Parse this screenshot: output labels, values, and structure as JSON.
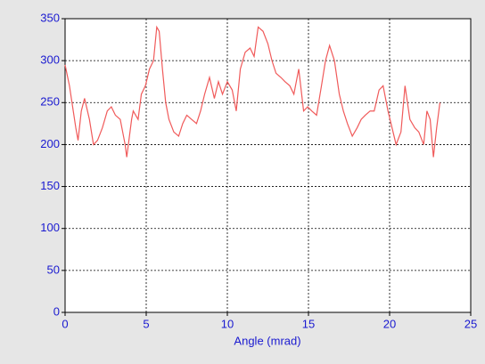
{
  "chart_data": {
    "type": "line",
    "xlabel": "Angle (mrad)",
    "x": [
      0,
      0.27,
      0.66,
      0.8,
      1.0,
      1.2,
      1.5,
      1.75,
      2.0,
      2.3,
      2.6,
      2.85,
      3.1,
      3.4,
      3.7,
      3.8,
      4.1,
      4.2,
      4.5,
      4.7,
      4.95,
      5.2,
      5.45,
      5.65,
      5.8,
      6.0,
      6.2,
      6.4,
      6.7,
      7.0,
      7.25,
      7.5,
      7.8,
      8.1,
      8.35,
      8.6,
      8.9,
      9.2,
      9.45,
      9.7,
      10.0,
      10.3,
      10.55,
      10.8,
      11.1,
      11.4,
      11.65,
      11.9,
      12.2,
      12.5,
      12.75,
      13.0,
      13.3,
      13.55,
      13.85,
      14.1,
      14.4,
      14.7,
      14.95,
      15.2,
      15.5,
      15.8,
      16.05,
      16.3,
      16.6,
      16.9,
      17.15,
      17.4,
      17.7,
      18.0,
      18.25,
      18.5,
      18.8,
      19.05,
      19.35,
      19.6,
      19.9,
      20.15,
      20.4,
      20.7,
      20.95,
      21.25,
      21.55,
      21.8,
      22.1,
      22.3,
      22.5,
      22.7,
      22.9,
      23.1
    ],
    "series": [
      {
        "color": "#f05a5a",
        "values": [
          295,
          270,
          220,
          205,
          240,
          255,
          230,
          200,
          205,
          220,
          240,
          245,
          235,
          230,
          200,
          185,
          230,
          240,
          230,
          260,
          270,
          290,
          300,
          340,
          335,
          290,
          250,
          230,
          215,
          210,
          225,
          235,
          230,
          225,
          240,
          260,
          280,
          255,
          275,
          260,
          275,
          265,
          240,
          290,
          310,
          315,
          305,
          340,
          335,
          320,
          300,
          285,
          280,
          275,
          270,
          260,
          290,
          240,
          245,
          240,
          235,
          270,
          300,
          318,
          300,
          260,
          240,
          225,
          210,
          220,
          230,
          235,
          240,
          240,
          265,
          270,
          240,
          220,
          200,
          215,
          270,
          230,
          220,
          215,
          200,
          240,
          230,
          185,
          220,
          250
        ]
      }
    ],
    "xlim": [
      0,
      25
    ],
    "xticks": [
      0,
      5,
      10,
      15,
      20,
      25
    ],
    "ylim": [
      0,
      350
    ],
    "yticks": [
      0,
      50,
      100,
      150,
      200,
      250,
      300,
      350
    ],
    "grid": true
  }
}
